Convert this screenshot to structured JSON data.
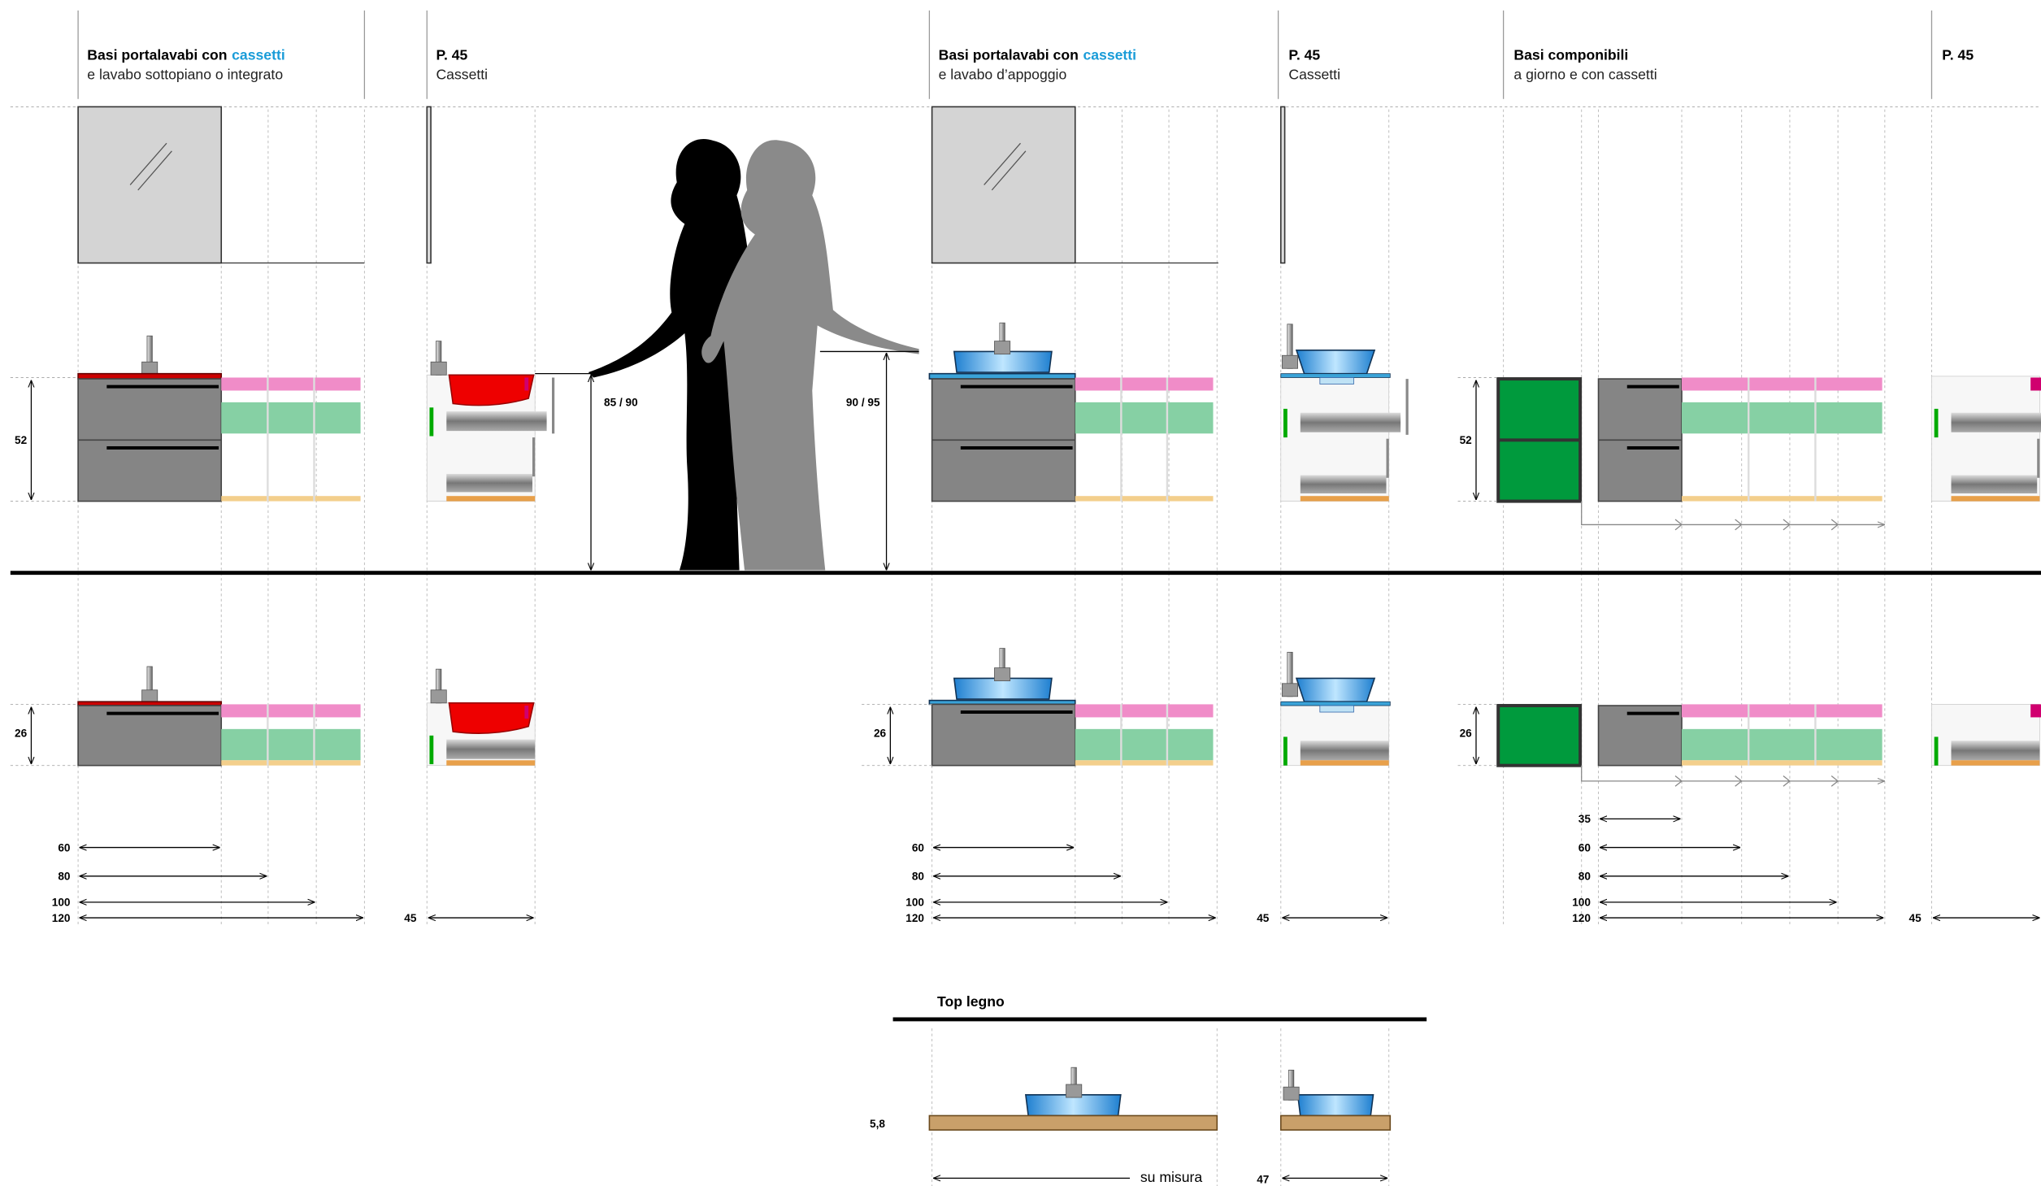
{
  "sections": [
    {
      "title": "Basi portalavabi con",
      "highlight": "cassetti",
      "subtitle": "e lavabo sottopiano o integrato"
    },
    {
      "title": "P. 45",
      "subtitle": "Cassetti"
    },
    {
      "title": "Basi portalavabi con",
      "highlight": "cassetti",
      "subtitle": "e lavabo d’appoggio"
    },
    {
      "title": "P. 45",
      "subtitle": "Cassetti"
    },
    {
      "title": "Basi componibili",
      "subtitle": "a giorno e con cassetti"
    },
    {
      "title": "P. 45"
    }
  ],
  "heights": {
    "row1_left": 52,
    "human_1": "85 / 90",
    "human_2": "90 / 95",
    "row1_right": 52,
    "row2_left": 26,
    "row2_middle": 26,
    "row2_right": 26
  },
  "widths": {
    "group1": [
      60,
      80,
      100,
      120
    ],
    "group1_depth": 45,
    "group2": [
      60,
      80,
      100,
      120
    ],
    "group2_depth": 45,
    "group3": [
      35,
      60,
      80,
      100,
      120
    ],
    "group3_depth": 45
  },
  "top_legno": {
    "title": "Top legno",
    "thickness": "5,8",
    "width": "su misura",
    "depth": 47
  }
}
